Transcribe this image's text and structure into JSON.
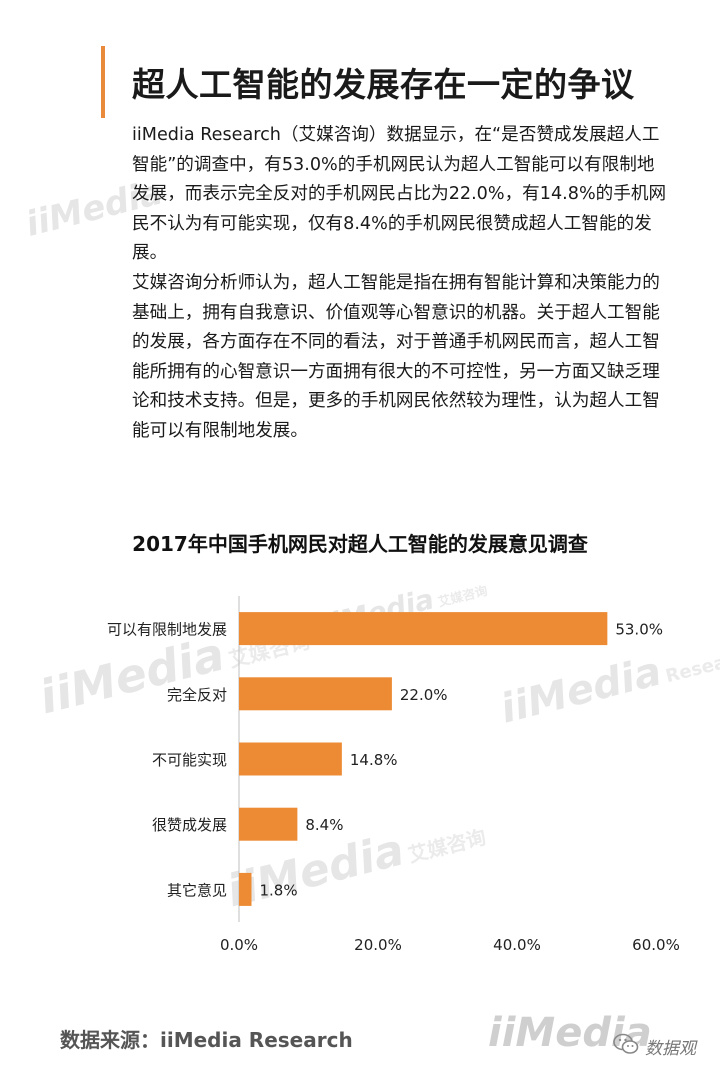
{
  "heading": "超人工智能的发展存在一定的争议",
  "paragraphs": [
    "iiMedia Research（艾媒咨询）数据显示，在“是否赞成发展超人工智能”的调查中，有53.0%的手机网民认为超人工智能可以有限制地发展，而表示完全反对的手机网民占比为22.0%，有14.8%的手机网民不认为有可能实现，仅有8.4%的手机网民很赞成超人工智能的发展。",
    "艾媒咨询分析师认为，超人工智能是指在拥有智能计算和决策能力的基础上，拥有自我意识、价值观等心智意识的机器。关于超人工智能的发展，各方面存在不同的看法，对于普通手机网民而言，超人工智能所拥有的心智意识一方面拥有很大的不可控性，另一方面又缺乏理论和技术支持。但是，更多的手机网民依然较为理性，认为超人工智能可以有限制地发展。"
  ],
  "chart_data": {
    "type": "bar",
    "orientation": "horizontal",
    "title": "2017年中国手机网民对超人工智能的发展意见调查",
    "categories": [
      "可以有限制地发展",
      "完全反对",
      "不可能实现",
      "很赞成发展",
      "其它意见"
    ],
    "values": [
      53.0,
      22.0,
      14.8,
      8.4,
      1.8
    ],
    "value_labels": [
      "53.0%",
      "22.0%",
      "14.8%",
      "8.4%",
      "1.8%"
    ],
    "xlim": [
      0,
      60
    ],
    "x_ticks": [
      "0.0%",
      "20.0%",
      "40.0%",
      "60.0%"
    ],
    "grid": false,
    "bar_color": "#ed8b34"
  },
  "watermark": {
    "brand": "iiMedia",
    "tag": "艾媒咨询",
    "sub": "Research"
  },
  "footer": {
    "source": "数据来源：iiMedia Research",
    "logo": "iiMedia",
    "wechat_name": "数据观",
    "wechat_icon": "wechat-icon"
  },
  "colors": {
    "accent": "#e98a3a",
    "bar": "#ed8b34",
    "axis": "#bfbfbf"
  }
}
